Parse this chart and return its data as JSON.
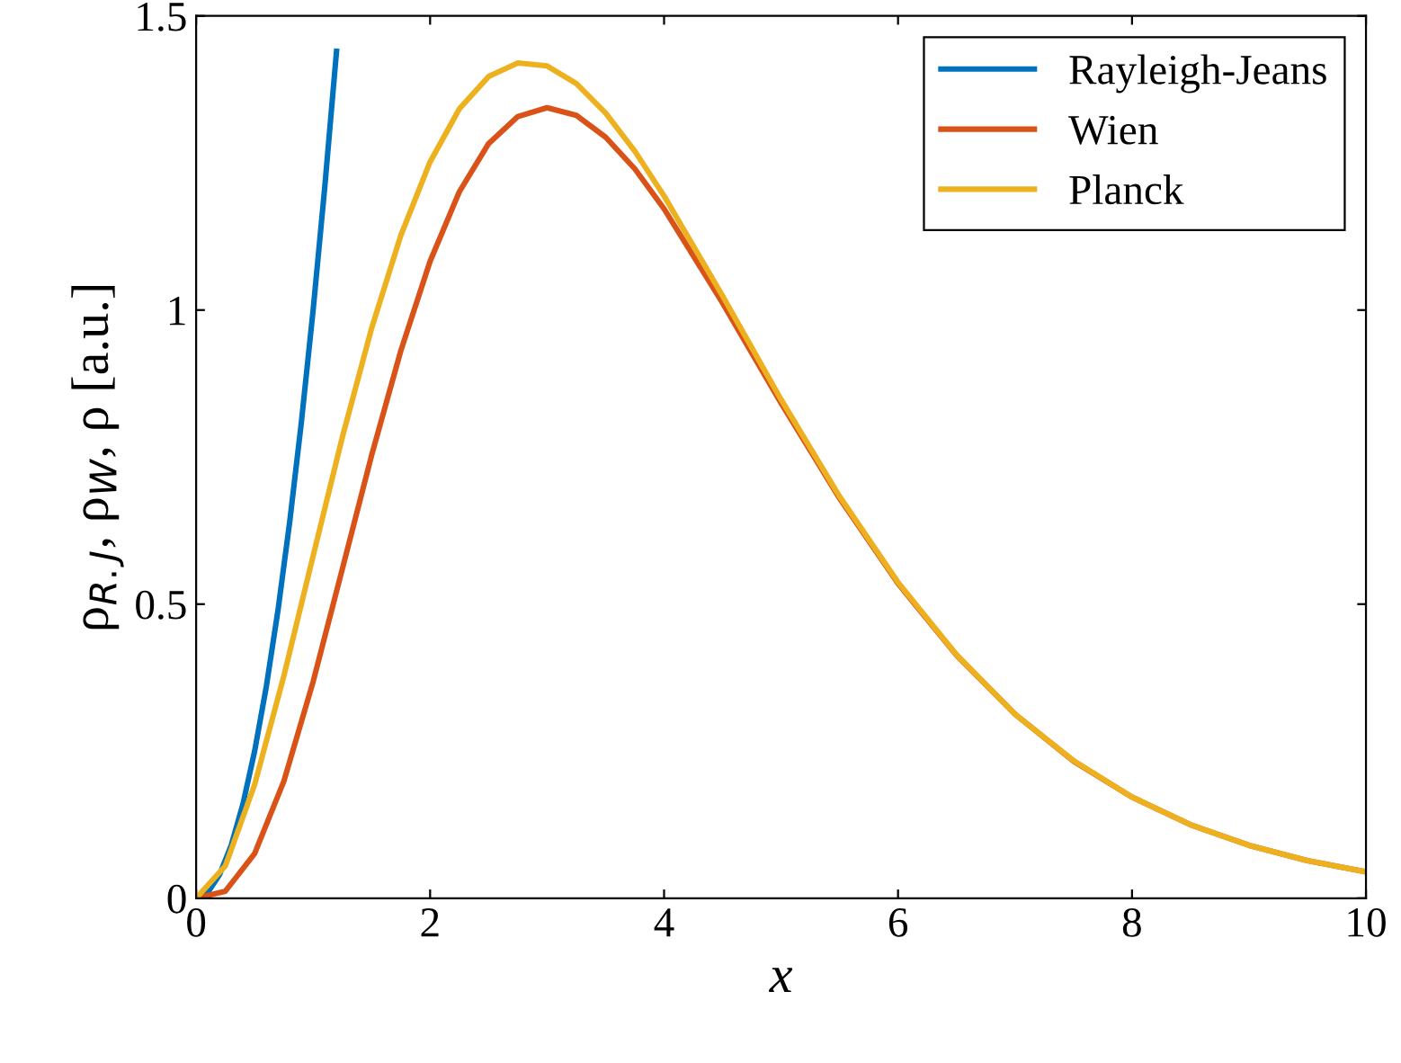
{
  "chart_data": {
    "type": "line",
    "xlabel": "x",
    "ylabel": "ρ$_{R.J}$, ρ$_{W}$, ρ [a.u.]",
    "xlim": [
      0,
      10
    ],
    "xticks": [
      0,
      2,
      4,
      6,
      8,
      10
    ],
    "ylim": [
      0,
      1.5
    ],
    "yticks": [
      0,
      0.5,
      1,
      1.5
    ],
    "grid": false,
    "legend": "top right",
    "marker": "none",
    "line_style": "solid",
    "series": [
      {
        "name": "Rayleigh-Jeans",
        "color": "#0072bd",
        "x": [
          0,
          0.1,
          0.2,
          0.3,
          0.4,
          0.5,
          0.6,
          0.7,
          0.8,
          0.9,
          1.0,
          1.1,
          1.2
        ],
        "values": [
          0,
          0.01,
          0.04,
          0.09,
          0.16,
          0.25,
          0.36,
          0.49,
          0.64,
          0.81,
          1.0,
          1.21,
          1.44
        ]
      },
      {
        "name": "Wien",
        "color": "#d95319",
        "x": [
          0,
          0.25,
          0.5,
          0.75,
          1,
          1.25,
          1.5,
          1.75,
          2,
          2.25,
          2.5,
          2.75,
          3,
          3.25,
          3.5,
          3.75,
          4,
          4.5,
          5,
          5.5,
          6,
          6.5,
          7,
          7.5,
          8,
          8.5,
          9,
          9.5,
          10
        ],
        "values": [
          0,
          0.012,
          0.076,
          0.199,
          0.368,
          0.56,
          0.753,
          0.931,
          1.083,
          1.201,
          1.283,
          1.329,
          1.344,
          1.331,
          1.294,
          1.24,
          1.172,
          1.012,
          0.842,
          0.68,
          0.535,
          0.413,
          0.313,
          0.233,
          0.172,
          0.125,
          0.09,
          0.064,
          0.045
        ]
      },
      {
        "name": "Planck",
        "color": "#edb120",
        "x": [
          0,
          0.25,
          0.5,
          0.75,
          1,
          1.25,
          1.5,
          1.75,
          2,
          2.25,
          2.5,
          2.75,
          3,
          3.25,
          3.5,
          3.75,
          4,
          4.5,
          5,
          5.5,
          6,
          6.5,
          7,
          7.5,
          8,
          8.5,
          9,
          9.5,
          10
        ],
        "values": [
          0,
          0.055,
          0.193,
          0.378,
          0.582,
          0.784,
          0.969,
          1.127,
          1.252,
          1.342,
          1.397,
          1.42,
          1.415,
          1.385,
          1.335,
          1.27,
          1.194,
          1.024,
          0.848,
          0.683,
          0.537,
          0.414,
          0.313,
          0.234,
          0.172,
          0.125,
          0.09,
          0.064,
          0.045
        ]
      }
    ]
  }
}
